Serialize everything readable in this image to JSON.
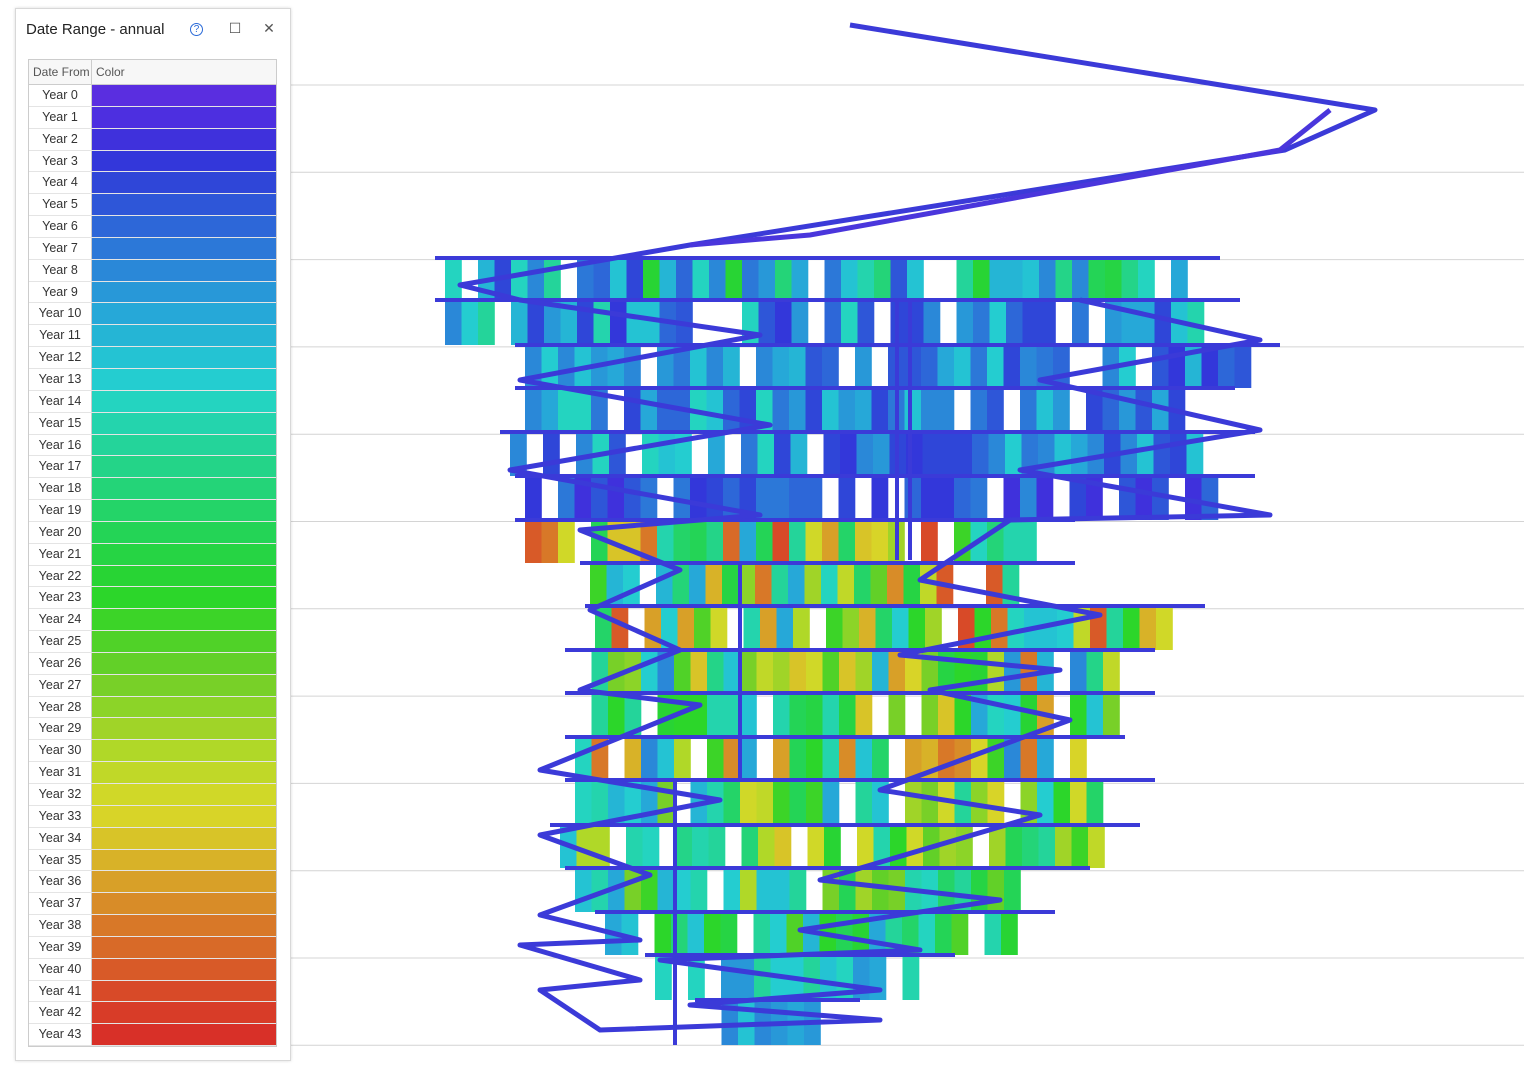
{
  "panel": {
    "title": "Date Range - annual",
    "help_icon": "?",
    "columns": [
      "Date From",
      "Color"
    ],
    "rows": [
      {
        "label": "Year 0",
        "color": "#5a2ee0"
      },
      {
        "label": "Year 1",
        "color": "#4d2fe0"
      },
      {
        "label": "Year 2",
        "color": "#3f31dc"
      },
      {
        "label": "Year 3",
        "color": "#3337da"
      },
      {
        "label": "Year 4",
        "color": "#2f46d8"
      },
      {
        "label": "Year 5",
        "color": "#2e56d8"
      },
      {
        "label": "Year 6",
        "color": "#2d67d8"
      },
      {
        "label": "Year 7",
        "color": "#2c78d8"
      },
      {
        "label": "Year 8",
        "color": "#2a88d8"
      },
      {
        "label": "Year 9",
        "color": "#2898d8"
      },
      {
        "label": "Year 10",
        "color": "#26a8d8"
      },
      {
        "label": "Year 11",
        "color": "#25b5d5"
      },
      {
        "label": "Year 12",
        "color": "#24c3d3"
      },
      {
        "label": "Year 13",
        "color": "#24cdd0"
      },
      {
        "label": "Year 14",
        "color": "#24d4c0"
      },
      {
        "label": "Year 15",
        "color": "#24d4ad"
      },
      {
        "label": "Year 16",
        "color": "#24d49a"
      },
      {
        "label": "Year 17",
        "color": "#24d488"
      },
      {
        "label": "Year 18",
        "color": "#24d478"
      },
      {
        "label": "Year 19",
        "color": "#24d468"
      },
      {
        "label": "Year 20",
        "color": "#24d456"
      },
      {
        "label": "Year 21",
        "color": "#26d444"
      },
      {
        "label": "Year 22",
        "color": "#28d434"
      },
      {
        "label": "Year 23",
        "color": "#2cd62a"
      },
      {
        "label": "Year 24",
        "color": "#3cd428"
      },
      {
        "label": "Year 25",
        "color": "#50d228"
      },
      {
        "label": "Year 26",
        "color": "#62d028"
      },
      {
        "label": "Year 27",
        "color": "#78d028"
      },
      {
        "label": "Year 28",
        "color": "#8cd428"
      },
      {
        "label": "Year 29",
        "color": "#a0d428"
      },
      {
        "label": "Year 30",
        "color": "#b0d828"
      },
      {
        "label": "Year 31",
        "color": "#c0d828"
      },
      {
        "label": "Year 32",
        "color": "#d0d828"
      },
      {
        "label": "Year 33",
        "color": "#d8d428"
      },
      {
        "label": "Year 34",
        "color": "#d8c428"
      },
      {
        "label": "Year 35",
        "color": "#d8b228"
      },
      {
        "label": "Year 36",
        "color": "#d8a028"
      },
      {
        "label": "Year 37",
        "color": "#d88c28"
      },
      {
        "label": "Year 38",
        "color": "#d87828"
      },
      {
        "label": "Year 39",
        "color": "#d86a28"
      },
      {
        "label": "Year 40",
        "color": "#d85a28"
      },
      {
        "label": "Year 41",
        "color": "#d84a28"
      },
      {
        "label": "Year 42",
        "color": "#d83c28"
      },
      {
        "label": "Year 43",
        "color": "#d83028"
      }
    ]
  }
}
